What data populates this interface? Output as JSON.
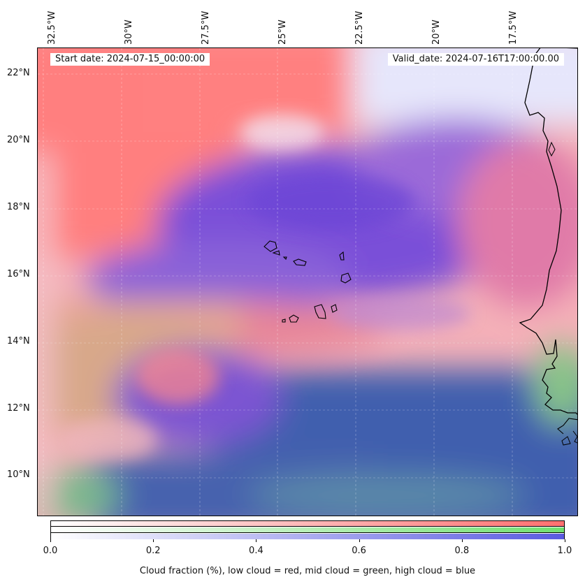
{
  "map": {
    "longitude_labels": [
      "32.5°W",
      "30°W",
      "27.5°W",
      "25°W",
      "22.5°W",
      "20°W",
      "17.5°W"
    ],
    "latitude_labels": [
      "22°N",
      "20°N",
      "18°N",
      "16°N",
      "14°N",
      "12°N",
      "10°N"
    ],
    "extent": {
      "lon_min": -33.0,
      "lon_max": -15.4,
      "lat_min": 8.8,
      "lat_max": 22.8
    },
    "start_date_text": "Start date: 2024-07-15_00:00:00",
    "valid_date_text": "Valid_date: 2024-07-16T17:00:00.00",
    "colors": {
      "low_cloud": "#ff7070",
      "mid_cloud": "#70e070",
      "high_cloud": "#5050e0",
      "mixed_low_high": "#7a52d8",
      "ocean_deep_cloud": "#3f5fae",
      "clear": "#ffffff",
      "coastline": "#000000"
    }
  },
  "colorbar": {
    "ticks": [
      "0.0",
      "0.2",
      "0.4",
      "0.6",
      "0.8",
      "1.0"
    ],
    "label": "Cloud fraction (%), low cloud = red, mid cloud = green, high cloud = blue",
    "rows": [
      "low",
      "mid",
      "high"
    ]
  }
}
